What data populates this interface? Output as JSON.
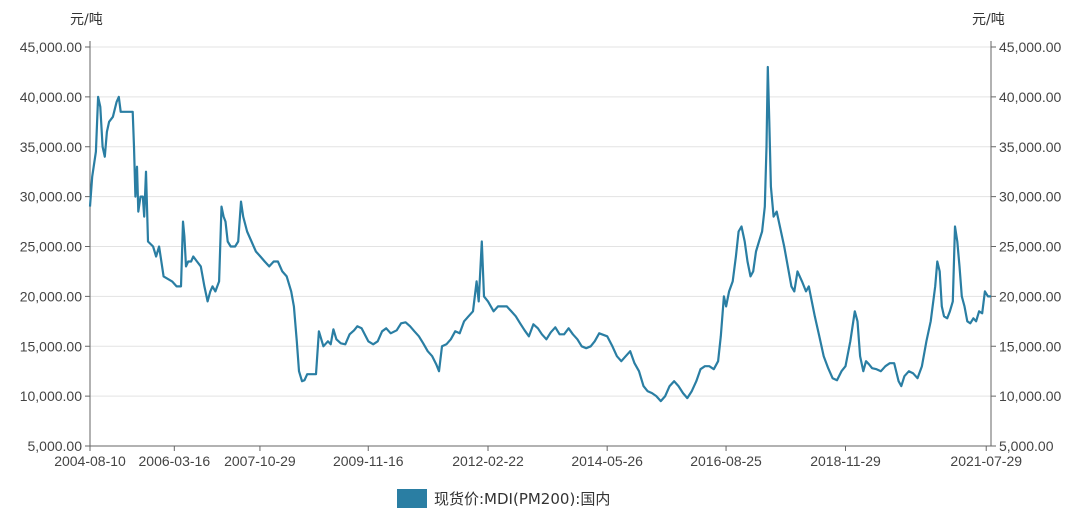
{
  "chart_data": {
    "type": "line",
    "y_unit_left": "元/吨",
    "y_unit_right": "元/吨",
    "ylim": [
      5000,
      45000
    ],
    "y_ticks": [
      "45,000.00",
      "40,000.00",
      "35,000.00",
      "30,000.00",
      "25,000.00",
      "20,000.00",
      "15,000.00",
      "10,000.00",
      "5,000.00"
    ],
    "y_tick_values": [
      45000,
      40000,
      35000,
      30000,
      25000,
      20000,
      15000,
      10000,
      5000
    ],
    "x_range": [
      "2004-08-10",
      "2021-08-31"
    ],
    "x_ticks": [
      "2004-08-10",
      "2006-03-16",
      "2007-10-29",
      "2009-11-16",
      "2012-02-22",
      "2014-05-26",
      "2016-08-25",
      "2018-11-29",
      "2021-07-29"
    ],
    "grid": true,
    "legend_position": "bottom-center",
    "series": [
      {
        "name": "现货价:MDI(PM200):国内",
        "color": "#2a7ea3",
        "points": [
          [
            "2004-08-10",
            29000
          ],
          [
            "2004-08-25",
            32000
          ],
          [
            "2004-09-20",
            34500
          ],
          [
            "2004-10-05",
            40000
          ],
          [
            "2004-10-20",
            39000
          ],
          [
            "2004-11-05",
            35000
          ],
          [
            "2004-11-20",
            34000
          ],
          [
            "2004-12-05",
            36500
          ],
          [
            "2004-12-20",
            37500
          ],
          [
            "2005-01-15",
            38000
          ],
          [
            "2005-02-10",
            39500
          ],
          [
            "2005-02-25",
            40000
          ],
          [
            "2005-03-10",
            38500
          ],
          [
            "2005-05-01",
            38500
          ],
          [
            "2005-06-01",
            38500
          ],
          [
            "2005-06-10",
            35000
          ],
          [
            "2005-06-20",
            30000
          ],
          [
            "2005-07-01",
            33000
          ],
          [
            "2005-07-10",
            28500
          ],
          [
            "2005-07-25",
            30000
          ],
          [
            "2005-08-10",
            30000
          ],
          [
            "2005-08-20",
            28000
          ],
          [
            "2005-09-01",
            32500
          ],
          [
            "2005-09-15",
            25500
          ],
          [
            "2005-10-20",
            25000
          ],
          [
            "2005-11-10",
            24000
          ],
          [
            "2005-12-01",
            25000
          ],
          [
            "2006-01-01",
            22000
          ],
          [
            "2006-03-01",
            21500
          ],
          [
            "2006-04-01",
            21000
          ],
          [
            "2006-05-01",
            21000
          ],
          [
            "2006-05-15",
            27500
          ],
          [
            "2006-05-25",
            26000
          ],
          [
            "2006-06-05",
            23000
          ],
          [
            "2006-06-20",
            23500
          ],
          [
            "2006-07-10",
            23500
          ],
          [
            "2006-07-25",
            24000
          ],
          [
            "2006-08-20",
            23500
          ],
          [
            "2006-09-15",
            23000
          ],
          [
            "2006-10-10",
            21000
          ],
          [
            "2006-11-01",
            19500
          ],
          [
            "2006-11-20",
            20500
          ],
          [
            "2006-12-05",
            21000
          ],
          [
            "2006-12-25",
            20500
          ],
          [
            "2007-01-20",
            21500
          ],
          [
            "2007-02-05",
            29000
          ],
          [
            "2007-02-20",
            28000
          ],
          [
            "2007-03-05",
            27500
          ],
          [
            "2007-03-20",
            25500
          ],
          [
            "2007-04-10",
            25000
          ],
          [
            "2007-05-10",
            25000
          ],
          [
            "2007-06-01",
            25500
          ],
          [
            "2007-06-20",
            29500
          ],
          [
            "2007-07-05",
            28000
          ],
          [
            "2007-08-01",
            26500
          ],
          [
            "2007-09-01",
            25500
          ],
          [
            "2007-10-01",
            24500
          ],
          [
            "2007-11-01",
            24000
          ],
          [
            "2007-12-01",
            23500
          ],
          [
            "2008-01-01",
            23000
          ],
          [
            "2008-02-01",
            23500
          ],
          [
            "2008-03-01",
            23500
          ],
          [
            "2008-04-01",
            22500
          ],
          [
            "2008-05-01",
            22000
          ],
          [
            "2008-06-01",
            20500
          ],
          [
            "2008-06-20",
            19000
          ],
          [
            "2008-07-10",
            15500
          ],
          [
            "2008-07-25",
            12500
          ],
          [
            "2008-08-15",
            11500
          ],
          [
            "2008-09-01",
            11600
          ],
          [
            "2008-09-20",
            12200
          ],
          [
            "2008-10-20",
            12200
          ],
          [
            "2008-11-20",
            12200
          ],
          [
            "2008-12-10",
            16500
          ],
          [
            "2009-01-10",
            15000
          ],
          [
            "2009-02-10",
            15500
          ],
          [
            "2009-03-01",
            15200
          ],
          [
            "2009-03-20",
            16700
          ],
          [
            "2009-04-10",
            15700
          ],
          [
            "2009-05-10",
            15300
          ],
          [
            "2009-06-10",
            15200
          ],
          [
            "2009-07-10",
            16200
          ],
          [
            "2009-08-10",
            16600
          ],
          [
            "2009-09-01",
            17000
          ],
          [
            "2009-10-01",
            16800
          ],
          [
            "2009-11-16",
            15500
          ],
          [
            "2009-12-20",
            15200
          ],
          [
            "2010-01-20",
            15500
          ],
          [
            "2010-02-20",
            16500
          ],
          [
            "2010-03-20",
            16800
          ],
          [
            "2010-04-20",
            16300
          ],
          [
            "2010-06-01",
            16600
          ],
          [
            "2010-07-01",
            17300
          ],
          [
            "2010-08-01",
            17400
          ],
          [
            "2010-09-01",
            17000
          ],
          [
            "2010-10-01",
            16500
          ],
          [
            "2010-11-01",
            16000
          ],
          [
            "2010-12-01",
            15300
          ],
          [
            "2011-01-01",
            14500
          ],
          [
            "2011-02-01",
            14000
          ],
          [
            "2011-03-01",
            13200
          ],
          [
            "2011-03-20",
            12500
          ],
          [
            "2011-04-10",
            15000
          ],
          [
            "2011-05-10",
            15200
          ],
          [
            "2011-06-10",
            15700
          ],
          [
            "2011-07-10",
            16500
          ],
          [
            "2011-08-10",
            16300
          ],
          [
            "2011-09-10",
            17500
          ],
          [
            "2011-10-10",
            18000
          ],
          [
            "2011-11-10",
            18500
          ],
          [
            "2011-12-05",
            21500
          ],
          [
            "2011-12-20",
            19500
          ],
          [
            "2012-01-10",
            25500
          ],
          [
            "2012-01-25",
            20000
          ],
          [
            "2012-02-22",
            19500
          ],
          [
            "2012-04-01",
            18500
          ],
          [
            "2012-05-01",
            19000
          ],
          [
            "2012-06-01",
            19000
          ],
          [
            "2012-07-01",
            19000
          ],
          [
            "2012-08-01",
            18500
          ],
          [
            "2012-09-01",
            18000
          ],
          [
            "2012-10-01",
            17300
          ],
          [
            "2012-11-01",
            16600
          ],
          [
            "2012-12-01",
            16000
          ],
          [
            "2013-01-01",
            17200
          ],
          [
            "2013-02-01",
            16800
          ],
          [
            "2013-03-01",
            16200
          ],
          [
            "2013-04-01",
            15700
          ],
          [
            "2013-05-01",
            16400
          ],
          [
            "2013-06-01",
            16900
          ],
          [
            "2013-07-01",
            16200
          ],
          [
            "2013-08-01",
            16200
          ],
          [
            "2013-09-01",
            16800
          ],
          [
            "2013-10-01",
            16200
          ],
          [
            "2013-11-01",
            15700
          ],
          [
            "2013-12-01",
            15000
          ],
          [
            "2014-01-01",
            14800
          ],
          [
            "2014-02-01",
            15000
          ],
          [
            "2014-03-01",
            15500
          ],
          [
            "2014-04-01",
            16300
          ],
          [
            "2014-05-26",
            16000
          ],
          [
            "2014-07-01",
            15000
          ],
          [
            "2014-08-01",
            14000
          ],
          [
            "2014-09-01",
            13500
          ],
          [
            "2014-10-01",
            14000
          ],
          [
            "2014-11-01",
            14500
          ],
          [
            "2014-12-01",
            13300
          ],
          [
            "2015-01-01",
            12500
          ],
          [
            "2015-02-01",
            11000
          ],
          [
            "2015-03-01",
            10500
          ],
          [
            "2015-04-01",
            10300
          ],
          [
            "2015-05-01",
            10000
          ],
          [
            "2015-06-01",
            9500
          ],
          [
            "2015-07-01",
            10000
          ],
          [
            "2015-08-01",
            11000
          ],
          [
            "2015-09-01",
            11500
          ],
          [
            "2015-10-01",
            11000
          ],
          [
            "2015-11-01",
            10300
          ],
          [
            "2015-12-01",
            9800
          ],
          [
            "2016-01-01",
            10500
          ],
          [
            "2016-02-01",
            11500
          ],
          [
            "2016-03-01",
            12700
          ],
          [
            "2016-04-01",
            13000
          ],
          [
            "2016-05-01",
            13000
          ],
          [
            "2016-06-01",
            12700
          ],
          [
            "2016-07-01",
            13500
          ],
          [
            "2016-07-20",
            16000
          ],
          [
            "2016-08-10",
            20000
          ],
          [
            "2016-08-25",
            19000
          ],
          [
            "2016-09-15",
            20500
          ],
          [
            "2016-10-10",
            21500
          ],
          [
            "2016-11-01",
            24000
          ],
          [
            "2016-11-20",
            26500
          ],
          [
            "2016-12-10",
            27000
          ],
          [
            "2017-01-01",
            25500
          ],
          [
            "2017-01-20",
            23500
          ],
          [
            "2017-02-10",
            22000
          ],
          [
            "2017-03-01",
            22500
          ],
          [
            "2017-03-20",
            24500
          ],
          [
            "2017-04-10",
            25500
          ],
          [
            "2017-05-01",
            26500
          ],
          [
            "2017-05-20",
            29000
          ],
          [
            "2017-06-01",
            35000
          ],
          [
            "2017-06-10",
            43000
          ],
          [
            "2017-06-20",
            37500
          ],
          [
            "2017-07-01",
            31000
          ],
          [
            "2017-07-20",
            28000
          ],
          [
            "2017-08-10",
            28500
          ],
          [
            "2017-09-01",
            27000
          ],
          [
            "2017-10-01",
            25000
          ],
          [
            "2017-11-01",
            22500
          ],
          [
            "2017-11-20",
            21000
          ],
          [
            "2017-12-10",
            20500
          ],
          [
            "2018-01-01",
            22500
          ],
          [
            "2018-02-01",
            21500
          ],
          [
            "2018-03-01",
            20500
          ],
          [
            "2018-03-20",
            21000
          ],
          [
            "2018-04-10",
            19500
          ],
          [
            "2018-05-01",
            18000
          ],
          [
            "2018-06-01",
            16000
          ],
          [
            "2018-07-01",
            14000
          ],
          [
            "2018-08-01",
            12800
          ],
          [
            "2018-09-01",
            11800
          ],
          [
            "2018-10-01",
            11600
          ],
          [
            "2018-11-01",
            12500
          ],
          [
            "2018-11-29",
            13000
          ],
          [
            "2019-01-01",
            15500
          ],
          [
            "2019-02-01",
            18500
          ],
          [
            "2019-02-20",
            17500
          ],
          [
            "2019-03-10",
            14000
          ],
          [
            "2019-04-01",
            12500
          ],
          [
            "2019-04-20",
            13500
          ],
          [
            "2019-05-10",
            13200
          ],
          [
            "2019-06-01",
            12800
          ],
          [
            "2019-07-01",
            12700
          ],
          [
            "2019-08-01",
            12500
          ],
          [
            "2019-09-01",
            13000
          ],
          [
            "2019-10-01",
            13300
          ],
          [
            "2019-11-01",
            13300
          ],
          [
            "2019-12-01",
            11500
          ],
          [
            "2019-12-20",
            11000
          ],
          [
            "2020-01-10",
            12000
          ],
          [
            "2020-02-10",
            12500
          ],
          [
            "2020-03-10",
            12300
          ],
          [
            "2020-04-10",
            11800
          ],
          [
            "2020-05-10",
            13000
          ],
          [
            "2020-06-10",
            15500
          ],
          [
            "2020-07-10",
            17500
          ],
          [
            "2020-08-10",
            21000
          ],
          [
            "2020-08-25",
            23500
          ],
          [
            "2020-09-10",
            22500
          ],
          [
            "2020-09-25",
            19000
          ],
          [
            "2020-10-10",
            18000
          ],
          [
            "2020-11-01",
            17800
          ],
          [
            "2020-11-20",
            18500
          ],
          [
            "2020-12-10",
            19500
          ],
          [
            "2020-12-25",
            27000
          ],
          [
            "2021-01-10",
            25500
          ],
          [
            "2021-01-25",
            23000
          ],
          [
            "2021-02-10",
            20000
          ],
          [
            "2021-03-01",
            19000
          ],
          [
            "2021-03-20",
            17500
          ],
          [
            "2021-04-10",
            17300
          ],
          [
            "2021-05-01",
            17800
          ],
          [
            "2021-05-20",
            17500
          ],
          [
            "2021-06-10",
            18500
          ],
          [
            "2021-07-01",
            18300
          ],
          [
            "2021-07-20",
            20500
          ],
          [
            "2021-08-10",
            20000
          ],
          [
            "2021-08-31",
            20000
          ]
        ]
      }
    ]
  }
}
